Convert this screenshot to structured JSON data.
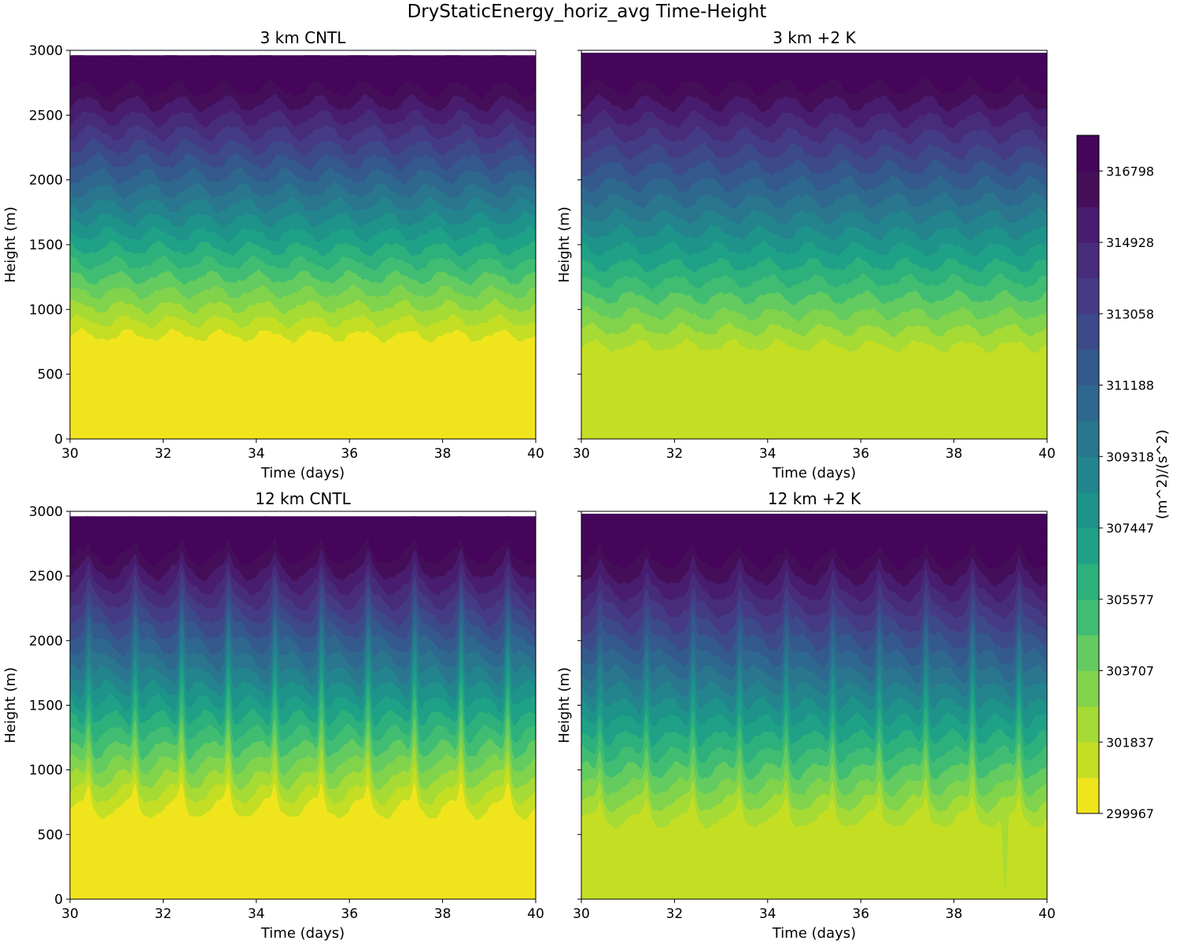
{
  "figure": {
    "suptitle": "DryStaticEnergy_horiz_avg Time-Height"
  },
  "chart_data": [
    {
      "type": "heatmap",
      "title": "3 km CNTL",
      "xlabel": "Time (days)",
      "ylabel": "Height (m)",
      "xlim": [
        30,
        40
      ],
      "ylim": [
        0,
        3000
      ],
      "x_ticks": [
        "30",
        "32",
        "34",
        "36",
        "38",
        "40"
      ],
      "y_ticks": [
        "0",
        "500",
        "1000",
        "1500",
        "2000",
        "2500",
        "3000"
      ],
      "show_ytick_labels": true,
      "base_level_index": 0,
      "base_height": 800,
      "level_spacing": 112,
      "max_height": 2960,
      "oscillation": {
        "period_days": 1,
        "amplitude": 40,
        "upper_amplitude": 60
      },
      "spikes": []
    },
    {
      "type": "heatmap",
      "title": "3 km +2 K",
      "xlabel": "Time (days)",
      "ylabel": "Height (m)",
      "xlim": [
        30,
        40
      ],
      "ylim": [
        0,
        3000
      ],
      "x_ticks": [
        "30",
        "32",
        "34",
        "36",
        "38",
        "40"
      ],
      "y_ticks": [
        "0",
        "500",
        "1000",
        "1500",
        "2000",
        "2500",
        "3000"
      ],
      "show_ytick_labels": false,
      "base_level_index": 1,
      "base_height": 720,
      "level_spacing": 125,
      "max_height": 2980,
      "oscillation": {
        "period_days": 1,
        "amplitude": 40,
        "upper_amplitude": 60
      },
      "spikes": []
    },
    {
      "type": "heatmap",
      "title": "12 km CNTL",
      "xlabel": "Time (days)",
      "ylabel": "Height (m)",
      "xlim": [
        30,
        40
      ],
      "ylim": [
        0,
        3000
      ],
      "x_ticks": [
        "30",
        "32",
        "34",
        "36",
        "38",
        "40"
      ],
      "y_ticks": [
        "0",
        "500",
        "1000",
        "1500",
        "2000",
        "2500",
        "3000"
      ],
      "show_ytick_labels": true,
      "base_level_index": 0,
      "base_height": 700,
      "level_spacing": 115,
      "max_height": 2960,
      "oscillation": {
        "period_days": 1,
        "amplitude": 70,
        "upper_amplitude": 60
      },
      "spikes": [
        {
          "day": 30.4,
          "amplitude": 250
        },
        {
          "day": 31.4,
          "amplitude": 280
        },
        {
          "day": 32.4,
          "amplitude": 330
        },
        {
          "day": 33.4,
          "amplitude": 320
        },
        {
          "day": 34.4,
          "amplitude": 300
        },
        {
          "day": 35.4,
          "amplitude": 330
        },
        {
          "day": 36.4,
          "amplitude": 320
        },
        {
          "day": 37.4,
          "amplitude": 330
        },
        {
          "day": 38.4,
          "amplitude": 340
        },
        {
          "day": 39.4,
          "amplitude": 330
        }
      ]
    },
    {
      "type": "heatmap",
      "title": "12 km +2 K",
      "xlabel": "Time (days)",
      "ylabel": "Height (m)",
      "xlim": [
        30,
        40
      ],
      "ylim": [
        0,
        3000
      ],
      "x_ticks": [
        "30",
        "32",
        "34",
        "36",
        "38",
        "40"
      ],
      "y_ticks": [
        "0",
        "500",
        "1000",
        "1500",
        "2000",
        "2500",
        "3000"
      ],
      "show_ytick_labels": false,
      "base_level_index": 1,
      "base_height": 620,
      "level_spacing": 125,
      "max_height": 2980,
      "oscillation": {
        "period_days": 1,
        "amplitude": 60,
        "upper_amplitude": 60
      },
      "spikes": [
        {
          "day": 30.4,
          "amplitude": 220
        },
        {
          "day": 31.4,
          "amplitude": 240
        },
        {
          "day": 32.4,
          "amplitude": 260
        },
        {
          "day": 33.4,
          "amplitude": 250
        },
        {
          "day": 34.4,
          "amplitude": 270
        },
        {
          "day": 35.4,
          "amplitude": 260
        },
        {
          "day": 36.4,
          "amplitude": 280
        },
        {
          "day": 37.4,
          "amplitude": 300
        },
        {
          "day": 38.4,
          "amplitude": 320
        },
        {
          "day": 39.4,
          "amplitude": 300
        }
      ],
      "dip": {
        "day": 39.1,
        "depth": 620
      }
    }
  ],
  "colorbar": {
    "label": "(m^2)/(s^2)",
    "min": 299967,
    "max": 317733,
    "tick_values": [
      299967,
      301837,
      303707,
      305577,
      307447,
      309318,
      311188,
      313058,
      314928,
      316798
    ],
    "tick_labels": [
      "299967",
      "301837",
      "303707",
      "305577",
      "307447",
      "309318",
      "311188",
      "313058",
      "314928",
      "316798"
    ],
    "level_colors": [
      "#f0e51d",
      "#c4de24",
      "#a6da35",
      "#81d34c",
      "#63cb5f",
      "#40bd73",
      "#2db07b",
      "#1fa187",
      "#1e938a",
      "#23848d",
      "#29768e",
      "#2e688e",
      "#34598d",
      "#3c4a89",
      "#443b84",
      "#472c7a",
      "#481c6e",
      "#440e58",
      "#44055a"
    ]
  }
}
